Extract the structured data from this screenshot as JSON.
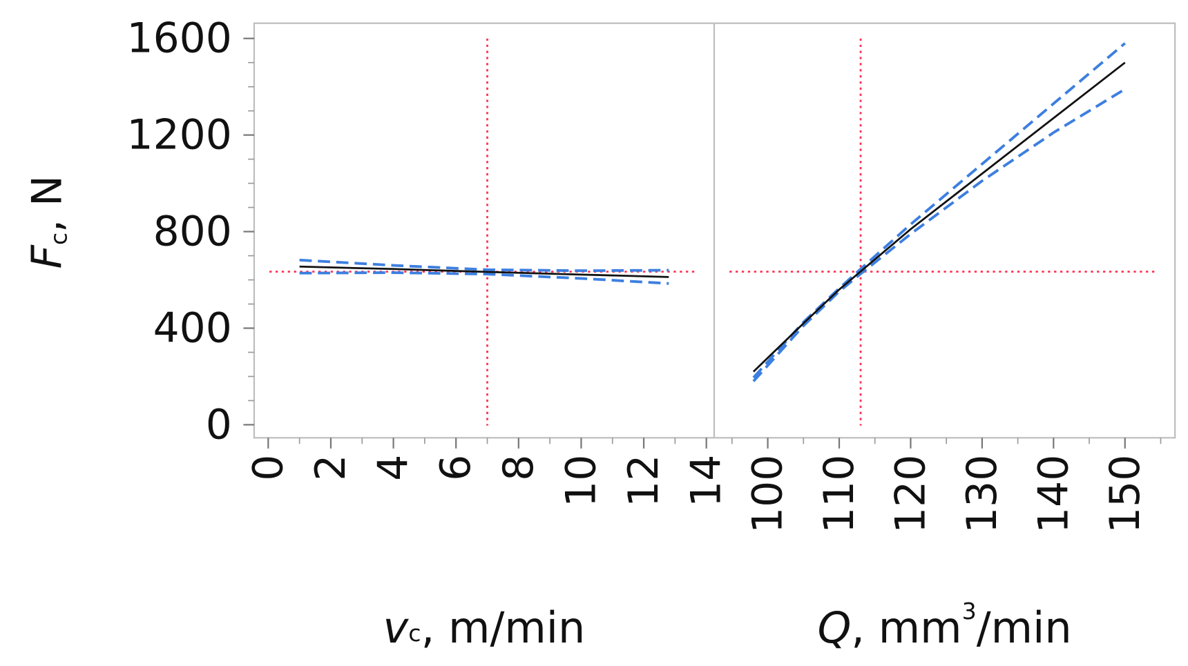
{
  "chart_data": {
    "type": "line",
    "ylabel": [
      {
        "text": "F",
        "style": "italic"
      },
      {
        "text": "c",
        "style": "sub"
      },
      {
        "text": ", N"
      }
    ],
    "ylim": [
      -54,
      1663
    ],
    "yticks": [
      0,
      400,
      800,
      1200,
      1600
    ],
    "minor_ticks": true,
    "grid": false,
    "ref_color": "#ff3355",
    "panels": [
      {
        "xlabel": [
          {
            "text": "v",
            "style": "italic"
          },
          {
            "text": "c",
            "style": "sub"
          },
          {
            "text": ", m/min"
          }
        ],
        "xlim": [
          -0.45,
          14.25
        ],
        "xticks": [
          0,
          2,
          4,
          6,
          8,
          10,
          12,
          14
        ],
        "x": [
          1,
          4,
          7,
          10,
          12.8
        ],
        "ref_x": 7,
        "ref_y": 634,
        "series": [
          {
            "color": "#3d7fe0",
            "dash": "dashed",
            "values": [
              682,
              660,
              642,
              638,
              640
            ]
          },
          {
            "color": "#3d7fe0",
            "dash": "dashed",
            "values": [
              628,
              630,
              624,
              606,
              585
            ]
          },
          {
            "color": "#111111",
            "dash": "solid",
            "values": [
              655,
              645,
              633,
              622,
              612
            ]
          }
        ]
      },
      {
        "xlabel": [
          {
            "text": "Q",
            "style": "italic"
          },
          {
            "text": ", mm"
          },
          {
            "text": "3",
            "style": "sup"
          },
          {
            "text": "/min"
          }
        ],
        "xlim": [
          92.5,
          157
        ],
        "xticks": [
          100,
          110,
          120,
          130,
          140,
          150
        ],
        "x": [
          98,
          105,
          110,
          113,
          120,
          130,
          140,
          150
        ],
        "ref_x": 113,
        "ref_y": 634,
        "series": [
          {
            "color": "#3d7fe0",
            "dash": "dashed",
            "values": [
              195,
              425,
              565,
              645,
              830,
              1080,
              1330,
              1580
            ]
          },
          {
            "color": "#3d7fe0",
            "dash": "dashed",
            "values": [
              180,
              410,
              552,
              625,
              790,
              1010,
              1210,
              1390
            ]
          },
          {
            "color": "#111111",
            "dash": "solid",
            "values": [
              220,
              420,
              560,
              635,
              810,
              1040,
              1270,
              1500
            ]
          }
        ]
      }
    ]
  }
}
